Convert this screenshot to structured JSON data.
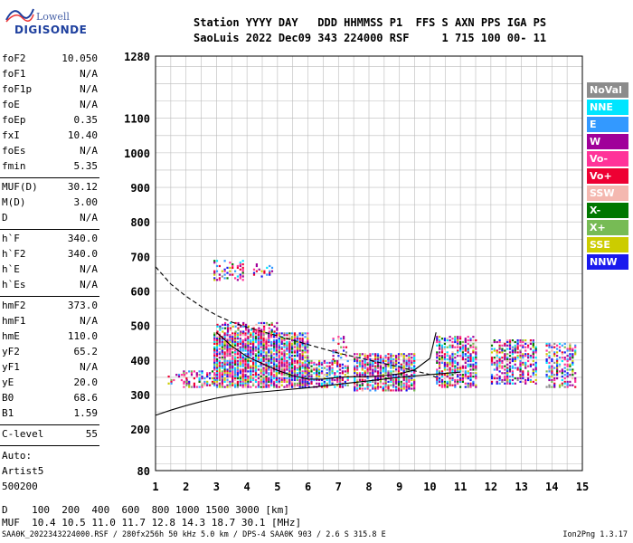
{
  "logo": {
    "top_text": "Lowell",
    "bottom_text": "DIGISONDE"
  },
  "header": {
    "line1": "Station YYYY DAY   DDD HHMMSS P1  FFS S AXN PPS IGA PS",
    "line2": "SaoLuis 2022 Dec09 343 224000 RSF     1 715 100 00- 11"
  },
  "params_group1": [
    {
      "key": "foF2",
      "val": "10.050"
    },
    {
      "key": "foF1",
      "val": "N/A"
    },
    {
      "key": "foF1p",
      "val": "N/A"
    },
    {
      "key": "foE",
      "val": "N/A"
    },
    {
      "key": "foEp",
      "val": "0.35"
    },
    {
      "key": "fxI",
      "val": "10.40"
    },
    {
      "key": "foEs",
      "val": "N/A"
    },
    {
      "key": "fmin",
      "val": "5.35"
    }
  ],
  "params_group2": [
    {
      "key": "MUF(D)",
      "val": "30.12"
    },
    {
      "key": "M(D)",
      "val": "3.00"
    },
    {
      "key": "D",
      "val": "N/A"
    }
  ],
  "params_group3": [
    {
      "key": "h`F",
      "val": "340.0"
    },
    {
      "key": "h`F2",
      "val": "340.0"
    },
    {
      "key": "h`E",
      "val": "N/A"
    },
    {
      "key": "h`Es",
      "val": "N/A"
    }
  ],
  "params_group4": [
    {
      "key": "hmF2",
      "val": "373.0"
    },
    {
      "key": "hmF1",
      "val": "N/A"
    },
    {
      "key": "hmE",
      "val": "110.0"
    },
    {
      "key": "yF2",
      "val": "65.2"
    },
    {
      "key": "yF1",
      "val": "N/A"
    },
    {
      "key": "yE",
      "val": "20.0"
    },
    {
      "key": "B0",
      "val": "68.6"
    },
    {
      "key": "B1",
      "val": "1.59"
    }
  ],
  "clevel": {
    "key": "C-level",
    "val": "55"
  },
  "auto_lines": [
    "Auto:",
    "Artist5",
    "500200"
  ],
  "legend": [
    {
      "label": "NoVal",
      "color": "#8c8c8c"
    },
    {
      "label": "NNE",
      "color": "#00e5ff"
    },
    {
      "label": "E",
      "color": "#3399ff"
    },
    {
      "label": "W",
      "color": "#a0009a"
    },
    {
      "label": "Vo-",
      "color": "#ff3399"
    },
    {
      "label": "Vo+",
      "color": "#ee0033"
    },
    {
      "label": "SSW",
      "color": "#f4b8b0"
    },
    {
      "label": "X-",
      "color": "#007700"
    },
    {
      "label": "X+",
      "color": "#77bb55"
    },
    {
      "label": "SSE",
      "color": "#cccc00"
    },
    {
      "label": "NNW",
      "color": "#1a1aee"
    }
  ],
  "bottom": {
    "line1": "D    100  200  400  600  800 1000 1500 3000 [km]",
    "line2": "MUF  10.4 10.5 11.0 11.7 12.8 14.3 18.7 30.1 [MHz]"
  },
  "footer_left": "SAA0K_2022343224000.RSF / 280fx256h 50 kHz 5.0 km / DPS-4 SAA0K 903 / 2.6 S 315.8 E",
  "footer_right": "Ion2Png 1.3.17",
  "chart_data": {
    "type": "scatter",
    "xlim": [
      1,
      15
    ],
    "ylim": [
      80,
      1280
    ],
    "x_ticks": [
      1,
      2,
      3,
      4,
      5,
      6,
      7,
      8,
      9,
      10,
      11,
      12,
      13,
      14,
      15
    ],
    "x_tick_labels": [
      "1",
      "2",
      "3",
      "4",
      "5",
      "6",
      "7",
      "8",
      "9",
      "10",
      "11",
      "12",
      "13",
      "14",
      "15"
    ],
    "y_ticks": [
      80,
      200,
      300,
      400,
      500,
      600,
      700,
      800,
      900,
      1000,
      1100,
      1280
    ],
    "y_tick_labels": [
      "80",
      "200",
      "300",
      "400",
      "500",
      "600",
      "700",
      "800",
      "900",
      "1000",
      "1100",
      "1280"
    ],
    "grid": true,
    "echo_clusters": [
      {
        "x": [
          1.4,
          2.0
        ],
        "y": [
          330,
          360
        ],
        "density": 0.35
      },
      {
        "x": [
          1.9,
          3.0
        ],
        "y": [
          320,
          370
        ],
        "density": 0.5
      },
      {
        "x": [
          2.9,
          6.0
        ],
        "y": [
          320,
          480
        ],
        "density": 0.85
      },
      {
        "x": [
          3.0,
          5.0
        ],
        "y": [
          480,
          510
        ],
        "density": 0.55
      },
      {
        "x": [
          2.9,
          3.9
        ],
        "y": [
          630,
          690
        ],
        "density": 0.4
      },
      {
        "x": [
          4.2,
          4.8
        ],
        "y": [
          640,
          680
        ],
        "density": 0.35
      },
      {
        "x": [
          6.0,
          7.3
        ],
        "y": [
          320,
          400
        ],
        "density": 0.6
      },
      {
        "x": [
          6.8,
          7.3
        ],
        "y": [
          400,
          470
        ],
        "density": 0.3
      },
      {
        "x": [
          7.5,
          9.5
        ],
        "y": [
          310,
          420
        ],
        "density": 0.75
      },
      {
        "x": [
          10.2,
          11.5
        ],
        "y": [
          320,
          470
        ],
        "density": 0.65
      },
      {
        "x": [
          12.0,
          13.5
        ],
        "y": [
          330,
          460
        ],
        "density": 0.55
      },
      {
        "x": [
          13.8,
          14.8
        ],
        "y": [
          320,
          450
        ],
        "density": 0.5
      }
    ],
    "solid_trace_lower": {
      "x": [
        1,
        1.5,
        2,
        2.5,
        3,
        3.5,
        4,
        5,
        6,
        7,
        8,
        9,
        10,
        11
      ],
      "y": [
        240,
        255,
        268,
        280,
        290,
        298,
        304,
        312,
        320,
        330,
        340,
        350,
        358,
        365
      ]
    },
    "solid_trace_upper": {
      "x": [
        3.0,
        3.5,
        4.0,
        4.5,
        5.0,
        5.5,
        6.0,
        6.5,
        7.0,
        7.5,
        8.0,
        8.5,
        9.0,
        9.5,
        10.0,
        10.2
      ],
      "y": [
        480,
        440,
        410,
        390,
        370,
        355,
        345,
        345,
        350,
        352,
        352,
        355,
        360,
        372,
        405,
        480
      ]
    },
    "dashed_trace": {
      "x": [
        1,
        1.5,
        2,
        2.5,
        3,
        3.5,
        4,
        5,
        6,
        7,
        8,
        9,
        10,
        10.2
      ],
      "y": [
        670,
        620,
        585,
        555,
        530,
        510,
        495,
        470,
        445,
        420,
        400,
        380,
        358,
        350
      ]
    }
  }
}
